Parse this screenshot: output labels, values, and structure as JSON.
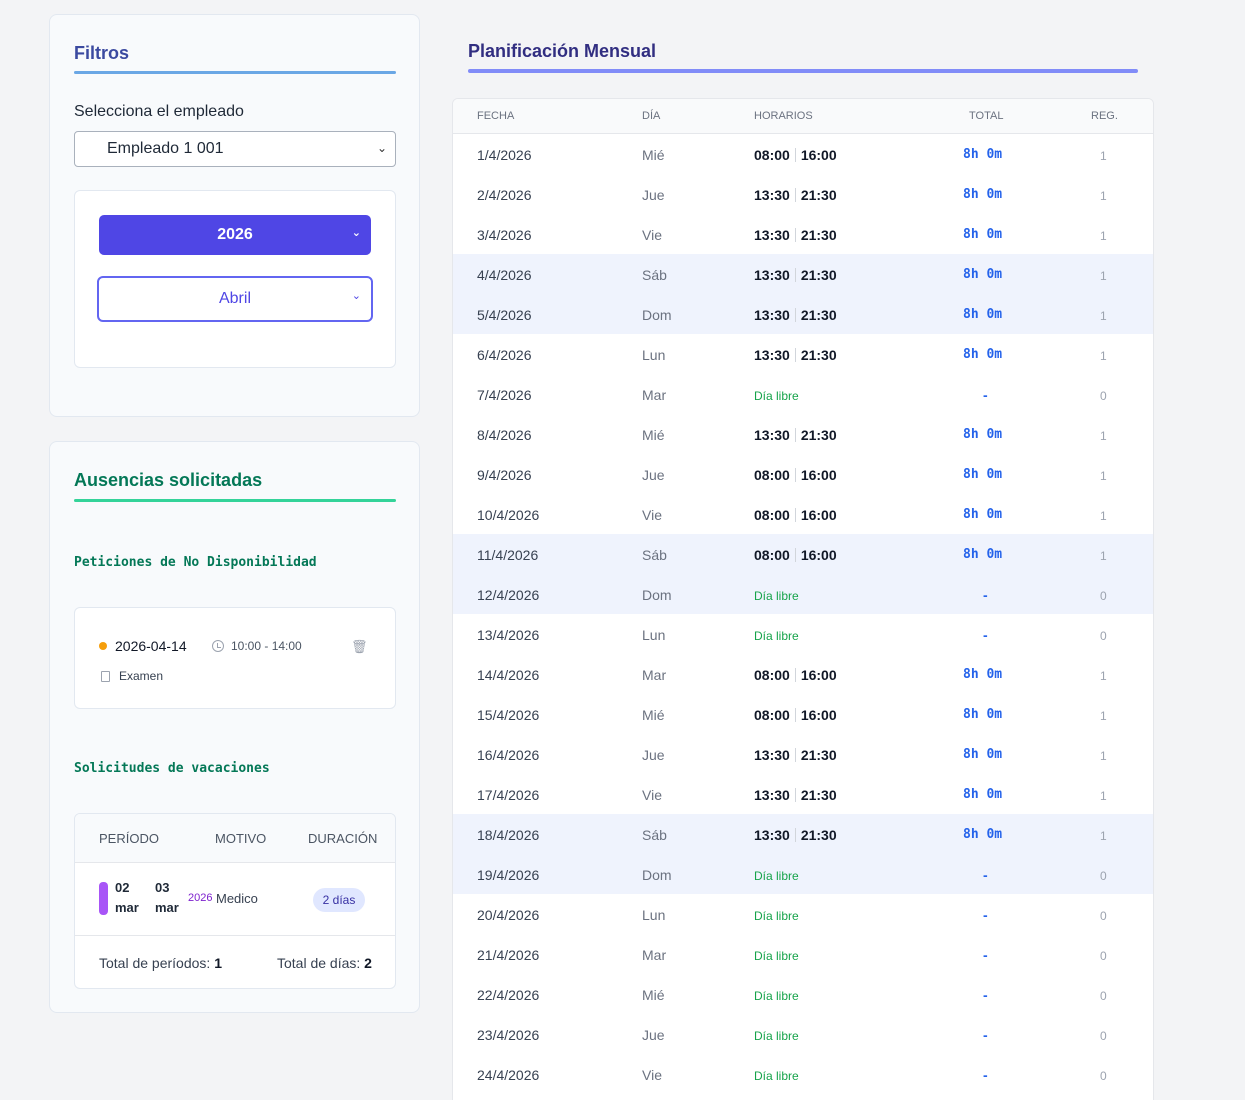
{
  "filters": {
    "title": "Filtros",
    "employee_label": "Selecciona el empleado",
    "employee_value": "Empleado 1 001",
    "year_value": "2026",
    "month_value": "Abril"
  },
  "absences": {
    "title": "Ausencias solicitadas",
    "unavailability_title": "Peticiones de No Disponibilidad",
    "unavailability": {
      "date": "2026-04-14",
      "time": "10:00 - 14:00",
      "reason": "Examen"
    },
    "vacations_title": "Solicitudes de vacaciones",
    "vacations_headers": {
      "period": "PERÍODO",
      "reason": "MOTIVO",
      "duration": "DURACIÓN"
    },
    "vacation": {
      "start_day": "02",
      "start_month": "mar",
      "end_day": "03",
      "end_month": "mar",
      "year": "2026",
      "reason": "Medico",
      "duration": "2 días"
    },
    "total_periods_label": "Total de períodos:",
    "total_periods_value": "1",
    "total_days_label": "Total de días:",
    "total_days_value": "2"
  },
  "schedule": {
    "title": "Planificación Mensual",
    "headers": {
      "date": "FECHA",
      "day": "DÍA",
      "hours": "HORARIOS",
      "total": "TOTAL",
      "reg": "REG."
    },
    "free_label": "Día libre",
    "dash": "-",
    "total_worked": "8h 0m",
    "rows": [
      {
        "date": "1/4/2026",
        "day": "Mié",
        "start": "08:00",
        "end": "16:00",
        "reg": "1",
        "weekend": false
      },
      {
        "date": "2/4/2026",
        "day": "Jue",
        "start": "13:30",
        "end": "21:30",
        "reg": "1",
        "weekend": false
      },
      {
        "date": "3/4/2026",
        "day": "Vie",
        "start": "13:30",
        "end": "21:30",
        "reg": "1",
        "weekend": false
      },
      {
        "date": "4/4/2026",
        "day": "Sáb",
        "start": "13:30",
        "end": "21:30",
        "reg": "1",
        "weekend": true
      },
      {
        "date": "5/4/2026",
        "day": "Dom",
        "start": "13:30",
        "end": "21:30",
        "reg": "1",
        "weekend": true
      },
      {
        "date": "6/4/2026",
        "day": "Lun",
        "start": "13:30",
        "end": "21:30",
        "reg": "1",
        "weekend": false
      },
      {
        "date": "7/4/2026",
        "day": "Mar",
        "start": "",
        "end": "",
        "reg": "0",
        "weekend": false
      },
      {
        "date": "8/4/2026",
        "day": "Mié",
        "start": "13:30",
        "end": "21:30",
        "reg": "1",
        "weekend": false
      },
      {
        "date": "9/4/2026",
        "day": "Jue",
        "start": "08:00",
        "end": "16:00",
        "reg": "1",
        "weekend": false
      },
      {
        "date": "10/4/2026",
        "day": "Vie",
        "start": "08:00",
        "end": "16:00",
        "reg": "1",
        "weekend": false
      },
      {
        "date": "11/4/2026",
        "day": "Sáb",
        "start": "08:00",
        "end": "16:00",
        "reg": "1",
        "weekend": true
      },
      {
        "date": "12/4/2026",
        "day": "Dom",
        "start": "",
        "end": "",
        "reg": "0",
        "weekend": true
      },
      {
        "date": "13/4/2026",
        "day": "Lun",
        "start": "",
        "end": "",
        "reg": "0",
        "weekend": false
      },
      {
        "date": "14/4/2026",
        "day": "Mar",
        "start": "08:00",
        "end": "16:00",
        "reg": "1",
        "weekend": false
      },
      {
        "date": "15/4/2026",
        "day": "Mié",
        "start": "08:00",
        "end": "16:00",
        "reg": "1",
        "weekend": false
      },
      {
        "date": "16/4/2026",
        "day": "Jue",
        "start": "13:30",
        "end": "21:30",
        "reg": "1",
        "weekend": false
      },
      {
        "date": "17/4/2026",
        "day": "Vie",
        "start": "13:30",
        "end": "21:30",
        "reg": "1",
        "weekend": false
      },
      {
        "date": "18/4/2026",
        "day": "Sáb",
        "start": "13:30",
        "end": "21:30",
        "reg": "1",
        "weekend": true
      },
      {
        "date": "19/4/2026",
        "day": "Dom",
        "start": "",
        "end": "",
        "reg": "0",
        "weekend": true
      },
      {
        "date": "20/4/2026",
        "day": "Lun",
        "start": "",
        "end": "",
        "reg": "0",
        "weekend": false
      },
      {
        "date": "21/4/2026",
        "day": "Mar",
        "start": "",
        "end": "",
        "reg": "0",
        "weekend": false
      },
      {
        "date": "22/4/2026",
        "day": "Mié",
        "start": "",
        "end": "",
        "reg": "0",
        "weekend": false
      },
      {
        "date": "23/4/2026",
        "day": "Jue",
        "start": "",
        "end": "",
        "reg": "0",
        "weekend": false
      },
      {
        "date": "24/4/2026",
        "day": "Vie",
        "start": "",
        "end": "",
        "reg": "0",
        "weekend": false
      }
    ]
  },
  "colors": {
    "accent": "#4f46e5",
    "filters_rule": "#6aa7e5",
    "absences_rule": "#34d399",
    "main_rule": "#818cf8",
    "total_text": "#2563eb",
    "free_text": "#16a34a",
    "weekend_row": "#eff3fd",
    "vacation_bar": "#a855f7",
    "pending_dot": "#f59e0b"
  },
  "icons": {
    "select_chevron": "chevron-down-icon",
    "time": "clock-icon",
    "delete": "trash-icon",
    "reason": "document-icon"
  }
}
